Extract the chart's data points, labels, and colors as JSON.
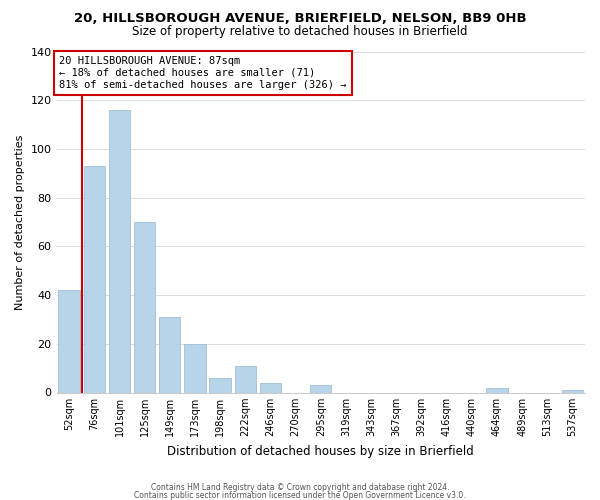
{
  "title1": "20, HILLSBOROUGH AVENUE, BRIERFIELD, NELSON, BB9 0HB",
  "title2": "Size of property relative to detached houses in Brierfield",
  "xlabel": "Distribution of detached houses by size in Brierfield",
  "ylabel": "Number of detached properties",
  "bar_labels": [
    "52sqm",
    "76sqm",
    "101sqm",
    "125sqm",
    "149sqm",
    "173sqm",
    "198sqm",
    "222sqm",
    "246sqm",
    "270sqm",
    "295sqm",
    "319sqm",
    "343sqm",
    "367sqm",
    "392sqm",
    "416sqm",
    "440sqm",
    "464sqm",
    "489sqm",
    "513sqm",
    "537sqm"
  ],
  "bar_values": [
    42,
    93,
    116,
    70,
    31,
    20,
    6,
    11,
    4,
    0,
    3,
    0,
    0,
    0,
    0,
    0,
    0,
    2,
    0,
    0,
    1
  ],
  "bar_color": "#b8d4e8",
  "bar_edge_color": "#a0c0d8",
  "vline_pos": 0.5,
  "vline_color": "#cc0000",
  "annotation_text_line1": "20 HILLSBOROUGH AVENUE: 87sqm",
  "annotation_text_line2": "← 18% of detached houses are smaller (71)",
  "annotation_text_line3": "81% of semi-detached houses are larger (326) →",
  "annotation_box_facecolor": "#ffffff",
  "annotation_box_edgecolor": "#cc0000",
  "ylim": [
    0,
    140
  ],
  "yticks": [
    0,
    20,
    40,
    60,
    80,
    100,
    120,
    140
  ],
  "footer1": "Contains HM Land Registry data © Crown copyright and database right 2024.",
  "footer2": "Contains public sector information licensed under the Open Government Licence v3.0.",
  "bg_color": "#ffffff",
  "grid_color": "#dddddd"
}
